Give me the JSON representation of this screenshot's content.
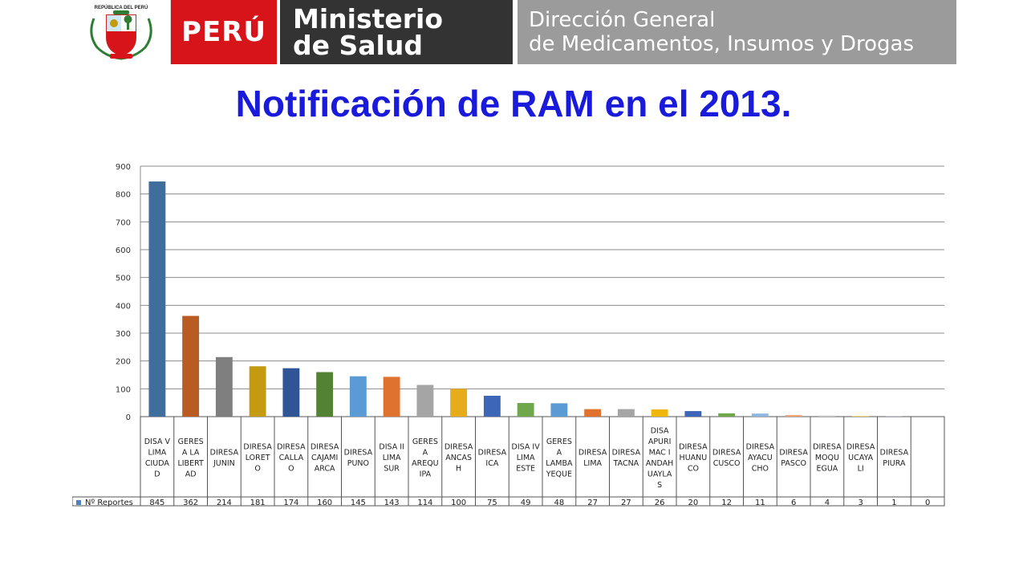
{
  "header": {
    "peru_label": "PERÚ",
    "ministry_line1": "Ministerio",
    "ministry_line2": "de Salud",
    "direction_line1": "Dirección General",
    "direction_line2": "de Medicamentos, Insumos y Drogas",
    "seal_icon": "coat-of-arms-icon",
    "seal_text": "REPÚBLICA DEL PERÚ"
  },
  "colors": {
    "title": "#1a1adb",
    "peru_red": "#d7141a",
    "ministry_dark": "#333333",
    "direction_gray": "#9b9b9b"
  },
  "slide_title": "Notificación de RAM en el 2013.",
  "chart_data": {
    "type": "bar",
    "title": "",
    "xlabel": "",
    "ylabel": "",
    "ylim": [
      0,
      900
    ],
    "yticks": [
      0,
      100,
      200,
      300,
      400,
      500,
      600,
      700,
      800,
      900
    ],
    "grid": true,
    "legend_placement": "data-table-row",
    "categories": [
      [
        "DISA V",
        "LIMA",
        "CIUDA",
        "D"
      ],
      [
        "GERES",
        "A LA",
        "LIBERT",
        "AD"
      ],
      [
        "DIRESA",
        "JUNIN"
      ],
      [
        "DIRESA",
        "LORET",
        "O"
      ],
      [
        "DIRESA",
        "CALLA",
        "O"
      ],
      [
        "DIRESA",
        "CAJAMI",
        "ARCA"
      ],
      [
        "DIRESA",
        "PUNO"
      ],
      [
        "DISA II",
        "LIMA",
        "SUR"
      ],
      [
        "GERES",
        "A",
        "AREQU",
        "IPA"
      ],
      [
        "DIRESA",
        "ANCAS",
        "H"
      ],
      [
        "DIRESA",
        "ICA"
      ],
      [
        "DISA IV",
        "LIMA",
        "ESTE"
      ],
      [
        "GERES",
        "A",
        "LAMBA",
        "YEQUE"
      ],
      [
        "DIRESA",
        "LIMA"
      ],
      [
        "DIRESA",
        "TACNA"
      ],
      [
        "DISA",
        "APURI",
        "MAC I",
        "ANDAH",
        "UAYLA",
        "S"
      ],
      [
        "DIRESA",
        "HUANU",
        "CO"
      ],
      [
        "DIRESA",
        "CUSCO"
      ],
      [
        "DIRESA",
        "AYACU",
        "CHO"
      ],
      [
        "DIRESA",
        "PASCO"
      ],
      [
        "DIRESA",
        "MOQU",
        "EGUA"
      ],
      [
        "DIRESA",
        "UCAYA",
        "LI"
      ],
      [
        "DIRESA",
        "PIURA"
      ],
      [
        ""
      ]
    ],
    "series": [
      {
        "name": "Nº Reportes",
        "values": [
          845,
          362,
          214,
          181,
          174,
          160,
          145,
          143,
          114,
          100,
          75,
          49,
          48,
          27,
          27,
          26,
          20,
          12,
          11,
          6,
          4,
          3,
          1,
          0
        ]
      }
    ],
    "bar_colors": [
      "#3f6e9c",
      "#b85c24",
      "#7f7f7f",
      "#c49a10",
      "#2f5596",
      "#548235",
      "#5b9bd5",
      "#e0722f",
      "#a5a5a5",
      "#e6ac1a",
      "#3e66b8",
      "#6fa84a",
      "#5b9bd5",
      "#e0722f",
      "#a5a5a5",
      "#f0b70a",
      "#3e66b8",
      "#6fa84a",
      "#8fb6e0",
      "#f2a57a",
      "#c9c9c9",
      "#f7d679",
      "#9fb5e0",
      "#b7d59a"
    ],
    "legend_key_color": "#4f81bd"
  }
}
